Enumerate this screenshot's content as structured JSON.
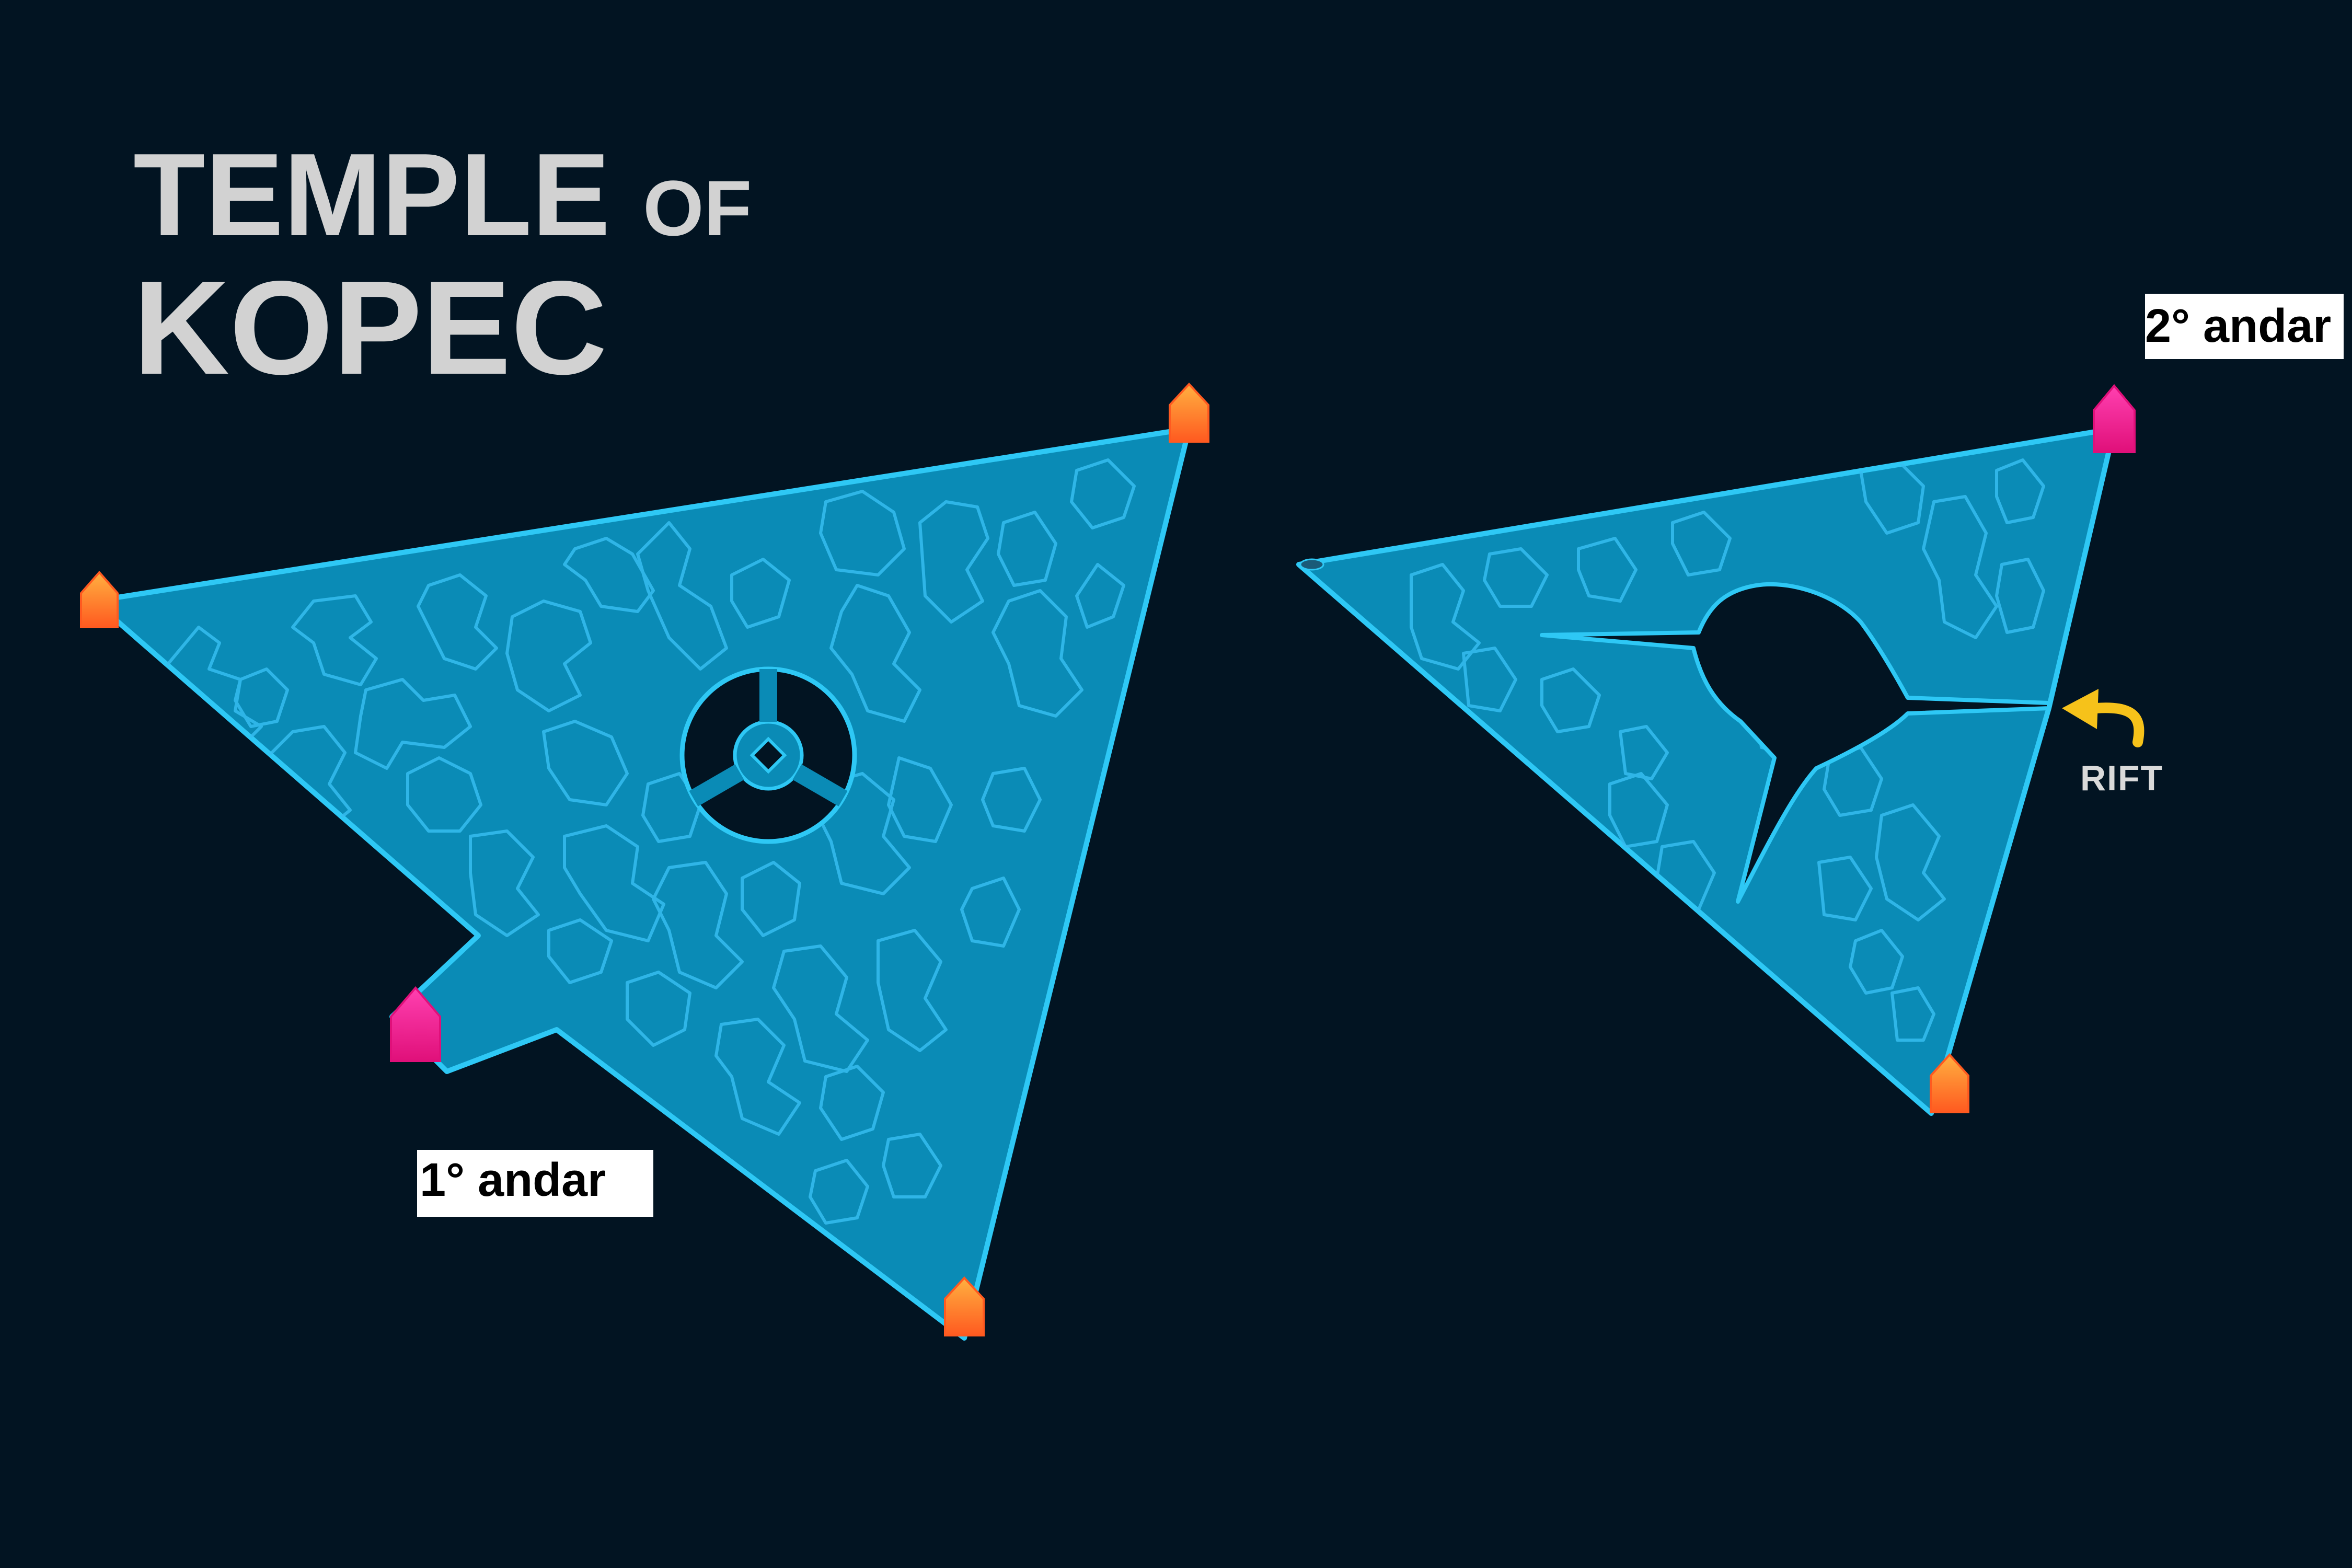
{
  "title": {
    "line1_main": "TEMPLE",
    "line1_small": "OF",
    "line2": "KOPEC"
  },
  "floors": [
    {
      "label": "1° andar"
    },
    {
      "label": "2° andar"
    }
  ],
  "annotations": {
    "rift": "RIFT"
  },
  "colors": {
    "background": "#021422",
    "floor_fill": "#0a8bb6",
    "floor_outline": "#2ec8f5",
    "terrain_lines": "#36bdf0",
    "title_text": "#d2d2d2",
    "label_bg": "#ffffff",
    "orange_marker": "#ff7a2a",
    "pink_marker": "#f0288a",
    "rift_arrow": "#f6c21a"
  },
  "markers": [
    {
      "floor": 1,
      "type": "orange",
      "icon": "portal-icon"
    },
    {
      "floor": 1,
      "type": "orange",
      "icon": "portal-icon"
    },
    {
      "floor": 1,
      "type": "orange",
      "icon": "portal-icon"
    },
    {
      "floor": 1,
      "type": "pink",
      "icon": "portal-icon"
    },
    {
      "floor": 2,
      "type": "pink",
      "icon": "portal-icon"
    },
    {
      "floor": 2,
      "type": "orange",
      "icon": "portal-icon"
    }
  ]
}
